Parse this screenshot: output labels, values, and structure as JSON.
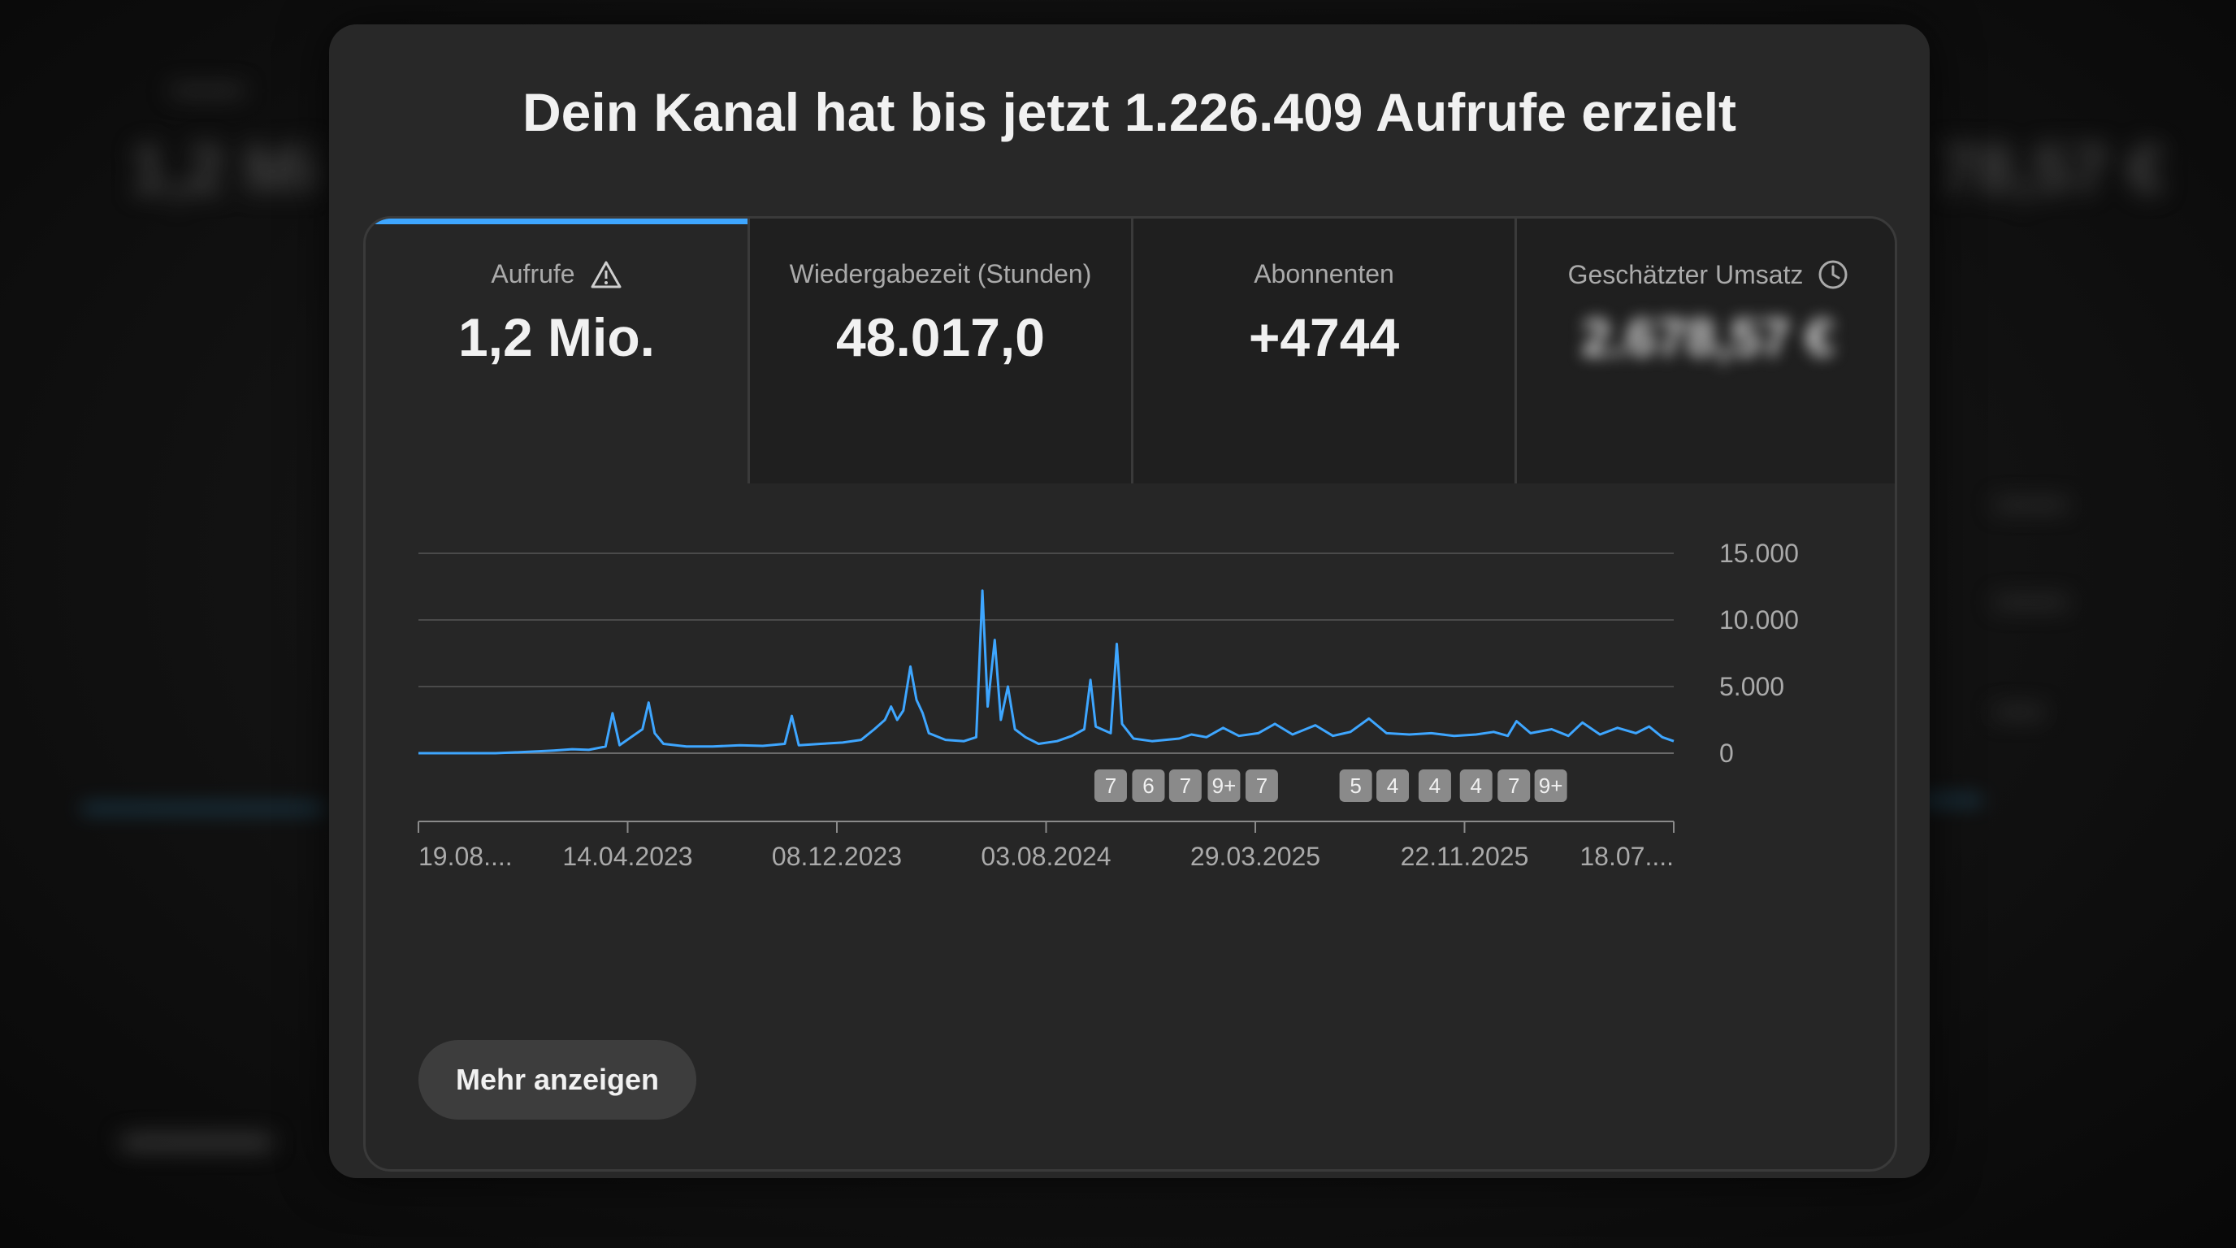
{
  "modal": {
    "title": "Dein Kanal hat bis jetzt 1.226.409 Aufrufe erzielt"
  },
  "tabs": [
    {
      "label": "Aufrufe",
      "value": "1,2 Mio.",
      "icon": "warning-icon",
      "active": true
    },
    {
      "label": "Wiedergabezeit (Stunden)",
      "value": "48.017,0",
      "active": false
    },
    {
      "label": "Abonnenten",
      "value": "+4744",
      "active": false
    },
    {
      "label": "Geschätzter Umsatz",
      "value": "2.678,57 €",
      "icon": "clock-icon",
      "blurred": true,
      "active": false
    }
  ],
  "chart_data": {
    "type": "line",
    "x_ticks": [
      "19.08....",
      "14.04.2023",
      "08.12.2023",
      "03.08.2024",
      "29.03.2025",
      "22.11.2025",
      "18.07...."
    ],
    "y_ticks": [
      "15.000",
      "10.000",
      "5.000",
      "0"
    ],
    "ylim": [
      0,
      15000
    ],
    "x_domain": [
      "2022-08-19",
      "2026-07-18"
    ],
    "series": [
      {
        "color": "#3ea6ff",
        "points": [
          [
            "2022-08-19",
            0
          ],
          [
            "2022-10-01",
            0
          ],
          [
            "2022-11-15",
            0
          ],
          [
            "2022-12-20",
            100
          ],
          [
            "2023-01-20",
            200
          ],
          [
            "2023-02-10",
            300
          ],
          [
            "2023-03-01",
            250
          ],
          [
            "2023-03-20",
            500
          ],
          [
            "2023-03-28",
            3000
          ],
          [
            "2023-04-05",
            600
          ],
          [
            "2023-05-01",
            1800
          ],
          [
            "2023-05-08",
            3800
          ],
          [
            "2023-05-15",
            1500
          ],
          [
            "2023-05-25",
            700
          ],
          [
            "2023-06-20",
            500
          ],
          [
            "2023-07-20",
            500
          ],
          [
            "2023-08-20",
            600
          ],
          [
            "2023-09-15",
            550
          ],
          [
            "2023-10-10",
            700
          ],
          [
            "2023-10-18",
            2800
          ],
          [
            "2023-10-26",
            600
          ],
          [
            "2023-11-20",
            700
          ],
          [
            "2023-12-15",
            800
          ],
          [
            "2024-01-05",
            1000
          ],
          [
            "2024-01-20",
            1800
          ],
          [
            "2024-02-01",
            2500
          ],
          [
            "2024-02-08",
            3500
          ],
          [
            "2024-02-15",
            2500
          ],
          [
            "2024-02-22",
            3200
          ],
          [
            "2024-03-01",
            6500
          ],
          [
            "2024-03-08",
            4000
          ],
          [
            "2024-03-15",
            3000
          ],
          [
            "2024-03-22",
            1500
          ],
          [
            "2024-04-10",
            1000
          ],
          [
            "2024-05-01",
            900
          ],
          [
            "2024-05-15",
            1200
          ],
          [
            "2024-05-22",
            12200
          ],
          [
            "2024-05-28",
            3500
          ],
          [
            "2024-06-05",
            8500
          ],
          [
            "2024-06-12",
            2500
          ],
          [
            "2024-06-20",
            5000
          ],
          [
            "2024-06-28",
            1800
          ],
          [
            "2024-07-10",
            1200
          ],
          [
            "2024-07-25",
            700
          ],
          [
            "2024-08-15",
            900
          ],
          [
            "2024-09-01",
            1300
          ],
          [
            "2024-09-15",
            1800
          ],
          [
            "2024-09-22",
            5500
          ],
          [
            "2024-09-28",
            2000
          ],
          [
            "2024-10-15",
            1500
          ],
          [
            "2024-10-22",
            8200
          ],
          [
            "2024-10-28",
            2200
          ],
          [
            "2024-11-10",
            1100
          ],
          [
            "2024-12-01",
            900
          ],
          [
            "2025-01-01",
            1100
          ],
          [
            "2025-01-15",
            1400
          ],
          [
            "2025-02-01",
            1200
          ],
          [
            "2025-02-20",
            1900
          ],
          [
            "2025-03-10",
            1300
          ],
          [
            "2025-04-01",
            1500
          ],
          [
            "2025-04-20",
            2200
          ],
          [
            "2025-05-10",
            1400
          ],
          [
            "2025-06-05",
            2100
          ],
          [
            "2025-06-25",
            1300
          ],
          [
            "2025-07-15",
            1600
          ],
          [
            "2025-08-05",
            2600
          ],
          [
            "2025-08-25",
            1500
          ],
          [
            "2025-09-20",
            1400
          ],
          [
            "2025-10-15",
            1500
          ],
          [
            "2025-11-10",
            1300
          ],
          [
            "2025-12-05",
            1400
          ],
          [
            "2025-12-25",
            1600
          ],
          [
            "2026-01-10",
            1300
          ],
          [
            "2026-01-20",
            2400
          ],
          [
            "2026-02-05",
            1500
          ],
          [
            "2026-03-01",
            1800
          ],
          [
            "2026-03-20",
            1300
          ],
          [
            "2026-04-05",
            2300
          ],
          [
            "2026-04-25",
            1400
          ],
          [
            "2026-05-15",
            1900
          ],
          [
            "2026-06-05",
            1500
          ],
          [
            "2026-06-20",
            2000
          ],
          [
            "2026-07-05",
            1200
          ],
          [
            "2026-07-18",
            900
          ]
        ]
      }
    ],
    "markers": [
      {
        "label": "7",
        "date": "2024-10-15"
      },
      {
        "label": "6",
        "date": "2024-11-27"
      },
      {
        "label": "7",
        "date": "2025-01-08"
      },
      {
        "label": "9+",
        "date": "2025-02-21"
      },
      {
        "label": "7",
        "date": "2025-04-05"
      },
      {
        "label": "5",
        "date": "2025-07-21"
      },
      {
        "label": "4",
        "date": "2025-09-01"
      },
      {
        "label": "4",
        "date": "2025-10-19"
      },
      {
        "label": "4",
        "date": "2025-12-05"
      },
      {
        "label": "7",
        "date": "2026-01-17"
      },
      {
        "label": "9+",
        "date": "2026-02-28"
      }
    ]
  },
  "more_button": {
    "label": "Mehr anzeigen"
  }
}
